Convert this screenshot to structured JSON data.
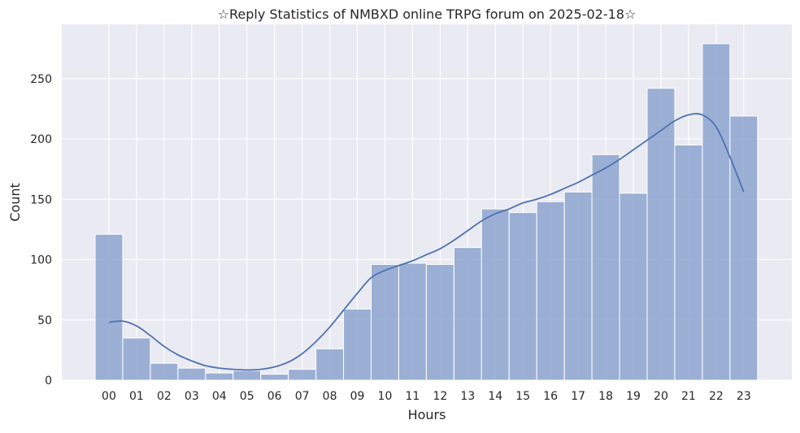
{
  "chart_data": {
    "type": "bar",
    "title": "☆Reply Statistics of NMBXD online TRPG forum on 2025-02-18☆",
    "xlabel": "Hours",
    "ylabel": "Count",
    "ylim": [
      0,
      295
    ],
    "yticks": [
      0,
      50,
      100,
      150,
      200,
      250
    ],
    "grid": true,
    "categories": [
      "00",
      "01",
      "02",
      "03",
      "04",
      "05",
      "06",
      "07",
      "08",
      "09",
      "10",
      "11",
      "12",
      "13",
      "14",
      "15",
      "16",
      "17",
      "18",
      "19",
      "20",
      "21",
      "22",
      "23"
    ],
    "series": [
      {
        "values": [
          121,
          35,
          14,
          10,
          6,
          8,
          5,
          9,
          26,
          59,
          96,
          97,
          96,
          110,
          142,
          139,
          148,
          156,
          187,
          155,
          242,
          195,
          279,
          219
        ]
      }
    ],
    "kde": {
      "x": [
        0,
        0.5,
        1,
        1.5,
        2,
        2.5,
        3,
        3.5,
        4,
        4.5,
        5,
        5.5,
        6,
        6.5,
        7,
        7.5,
        8,
        8.5,
        9,
        9.5,
        10,
        10.5,
        11,
        11.5,
        12,
        12.5,
        13,
        13.5,
        14,
        14.5,
        15,
        15.5,
        16,
        16.5,
        17,
        17.5,
        18,
        18.5,
        19,
        19.5,
        20,
        20.5,
        21,
        21.5,
        22,
        22.5,
        23
      ],
      "y": [
        48,
        49,
        45,
        37,
        28,
        21,
        16,
        12,
        10,
        9,
        8.5,
        9,
        11,
        15,
        22,
        32,
        44,
        58,
        72,
        85,
        91,
        95,
        99,
        104,
        109,
        116,
        124,
        132,
        138,
        142,
        147,
        150,
        154,
        159,
        164,
        170,
        176,
        183,
        191,
        199,
        207,
        215,
        220,
        220,
        210,
        185,
        156
      ]
    },
    "colors": {
      "bar_fill": "#8da5d0",
      "bar_stroke": "#ffffff",
      "kde_line": "#4c72b0",
      "plot_background": "#eaeaf2",
      "grid": "#ffffff"
    }
  }
}
